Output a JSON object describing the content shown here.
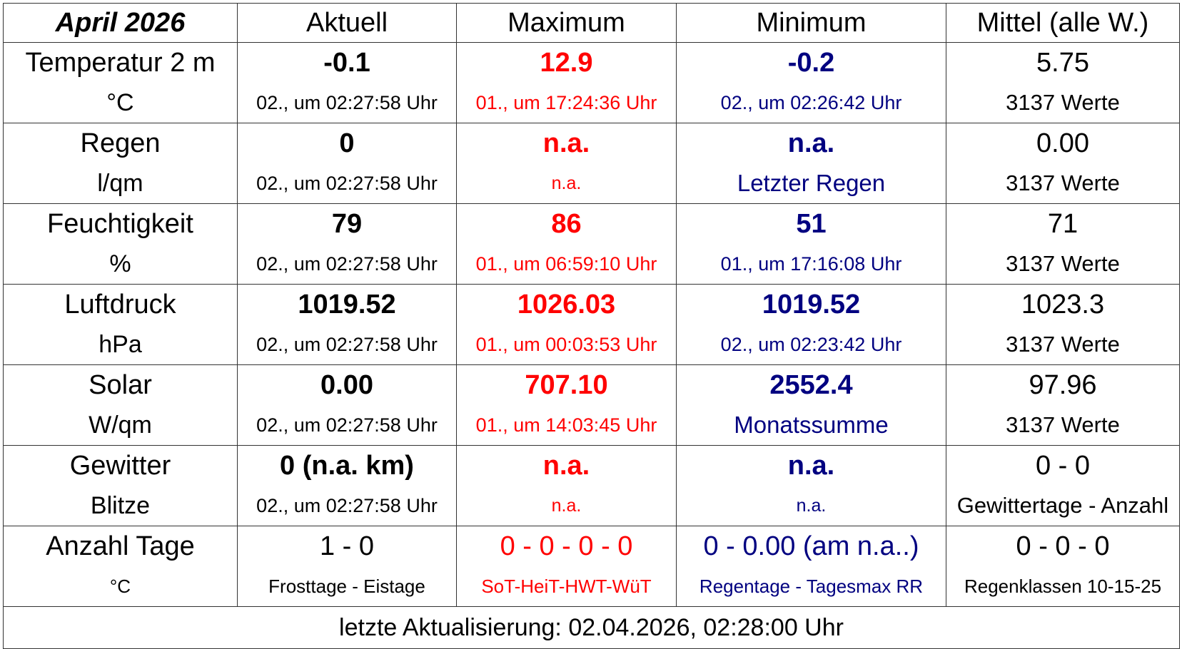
{
  "header": {
    "title": "April 2026",
    "columns": [
      "Aktuell",
      "Maximum",
      "Minimum",
      "Mittel (alle W.)"
    ]
  },
  "rows": [
    {
      "label": "Temperatur 2 m",
      "unit": "°C",
      "cells": [
        {
          "value": "-0.1",
          "note": "02., um 02:27:58 Uhr"
        },
        {
          "value": "12.9",
          "note": "01., um 17:24:36 Uhr"
        },
        {
          "value": "-0.2",
          "note": "02., um 02:26:42 Uhr"
        },
        {
          "value": "5.75",
          "note": "3137 Werte"
        }
      ]
    },
    {
      "label": "Regen",
      "unit": "l/qm",
      "cells": [
        {
          "value": "0",
          "note": "02., um 02:27:58 Uhr"
        },
        {
          "value": "n.a.",
          "note": "n.a."
        },
        {
          "value": "n.a.",
          "note": "Letzter Regen"
        },
        {
          "value": "0.00",
          "note": "3137  Werte"
        }
      ]
    },
    {
      "label": "Feuchtigkeit",
      "unit": "%",
      "cells": [
        {
          "value": "79",
          "note": "02., um 02:27:58 Uhr"
        },
        {
          "value": "86",
          "note": "01., um 06:59:10 Uhr"
        },
        {
          "value": "51",
          "note": "01., um 17:16:08 Uhr"
        },
        {
          "value": "71",
          "note": "3137 Werte"
        }
      ]
    },
    {
      "label": "Luftdruck",
      "unit": "hPa",
      "cells": [
        {
          "value": "1019.52",
          "note": "02., um 02:27:58 Uhr"
        },
        {
          "value": "1026.03",
          "note": "01., um 00:03:53 Uhr"
        },
        {
          "value": "1019.52",
          "note": "02., um 02:23:42 Uhr"
        },
        {
          "value": "1023.3",
          "note": "3137 Werte"
        }
      ]
    },
    {
      "label": "Solar",
      "unit": "W/qm",
      "cells": [
        {
          "value": "0.00",
          "note": "02., um 02:27:58 Uhr"
        },
        {
          "value": "707.10",
          "note": "01., um 14:03:45 Uhr"
        },
        {
          "value": "2552.4",
          "note": "Monatssumme"
        },
        {
          "value": "97.96",
          "note": "3137 Werte"
        }
      ]
    },
    {
      "label": "Gewitter",
      "unit": "Blitze",
      "cells": [
        {
          "value": "0 (n.a. km)",
          "note": "02., um 02:27:58 Uhr"
        },
        {
          "value": "n.a.",
          "note": "n.a."
        },
        {
          "value": "n.a.",
          "note": "n.a."
        },
        {
          "value": "0 - 0",
          "note": "Gewittertage - Anzahl"
        }
      ]
    },
    {
      "label": "Anzahl Tage",
      "unit": "°C",
      "cells": [
        {
          "value": "1 - 0",
          "note": "Frosttage - Eistage"
        },
        {
          "value": "0 - 0 - 0 - 0",
          "note": "SoT-HeiT-HWT-WüT"
        },
        {
          "value": "0 - 0.00 (am n.a..)",
          "note": "Regentage - Tagesmax RR"
        },
        {
          "value": "0 - 0 - 0",
          "note": "Regenklassen 10-15-25"
        }
      ]
    }
  ],
  "footer": "letzte Aktualisierung: 02.04.2026, 02:28:00 Uhr"
}
